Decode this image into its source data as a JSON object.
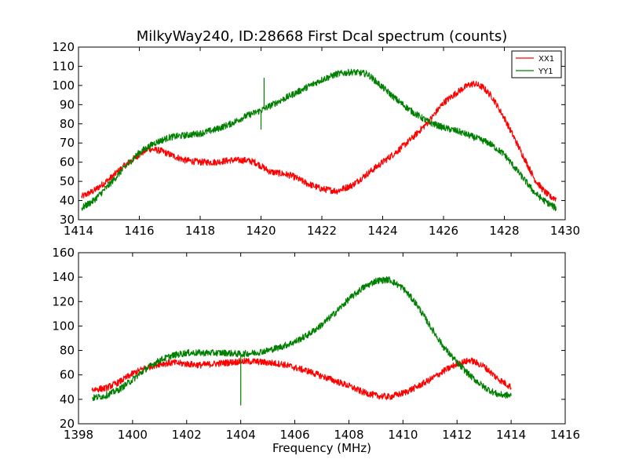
{
  "figure": {
    "title": "MilkyWay240, ID:28668 First Dcal spectrum (counts)"
  },
  "chart_data": [
    {
      "type": "line",
      "title": "MilkyWay240, ID:28668 First Dcal spectrum (counts)",
      "xlabel": "",
      "ylabel": "",
      "xlim": [
        1414,
        1430
      ],
      "ylim": [
        30,
        120
      ],
      "xticks": [
        1414,
        1416,
        1418,
        1420,
        1422,
        1424,
        1426,
        1428,
        1430
      ],
      "yticks": [
        30,
        40,
        50,
        60,
        70,
        80,
        90,
        100,
        110,
        120
      ],
      "grid": false,
      "legend": {
        "placement": "top-right",
        "entries": [
          "XX1",
          "YY1"
        ]
      },
      "series": [
        {
          "name": "XX1",
          "color": "#ff0000",
          "x": [
            1414.1,
            1414.5,
            1415,
            1415.5,
            1416,
            1416.3,
            1416.7,
            1417,
            1417.5,
            1418,
            1418.5,
            1419,
            1419.5,
            1419.8,
            1420,
            1420.3,
            1420.7,
            1421,
            1421.5,
            1422,
            1422.5,
            1423,
            1423.5,
            1424,
            1424.5,
            1425,
            1425.5,
            1426,
            1426.5,
            1426.8,
            1427,
            1427.3,
            1427.6,
            1428,
            1428.5,
            1429,
            1429.3,
            1429.5,
            1429.7
          ],
          "y": [
            42,
            45,
            51,
            58,
            64,
            67,
            66,
            64,
            61,
            60,
            60,
            61,
            61,
            60,
            58,
            55,
            54,
            53,
            49,
            46,
            45,
            48,
            54,
            60,
            66,
            73,
            81,
            91,
            97,
            100,
            101,
            99,
            94,
            83,
            67,
            51,
            45,
            42,
            41
          ]
        },
        {
          "name": "YY1",
          "color": "#008000",
          "x": [
            1414.1,
            1414.5,
            1415,
            1415.5,
            1416,
            1416.5,
            1417,
            1417.5,
            1418,
            1418.5,
            1419,
            1419.5,
            1420,
            1420.5,
            1421,
            1421.5,
            1422,
            1422.5,
            1423,
            1423.5,
            1424,
            1424.5,
            1425,
            1425.5,
            1426,
            1426.5,
            1427,
            1427.5,
            1428,
            1428.5,
            1429,
            1429.3,
            1429.5,
            1429.7
          ],
          "y": [
            36,
            40,
            48,
            57,
            65,
            70,
            73,
            74,
            75,
            77,
            80,
            84,
            87,
            91,
            95,
            99,
            103,
            106,
            107,
            106,
            99,
            92,
            86,
            81,
            78,
            76,
            73,
            70,
            64,
            54,
            44,
            40,
            38,
            36
          ],
          "spikes": [
            {
              "x": 1420.1,
              "y": 104
            },
            {
              "x": 1420.0,
              "y": 77
            }
          ]
        }
      ]
    },
    {
      "type": "line",
      "title": "",
      "xlabel": "Frequency (MHz)",
      "ylabel": "",
      "xlim": [
        1398,
        1416
      ],
      "ylim": [
        20,
        160
      ],
      "xticks": [
        1398,
        1400,
        1402,
        1404,
        1406,
        1408,
        1410,
        1412,
        1414,
        1416
      ],
      "yticks": [
        20,
        40,
        60,
        80,
        100,
        120,
        140,
        160
      ],
      "grid": false,
      "series": [
        {
          "name": "XX1",
          "color": "#ff0000",
          "x": [
            1398.5,
            1399,
            1399.5,
            1400,
            1400.5,
            1401,
            1401.5,
            1402,
            1402.5,
            1403,
            1403.5,
            1404,
            1404.5,
            1405,
            1405.5,
            1406,
            1406.5,
            1407,
            1407.5,
            1408,
            1408.5,
            1409,
            1409.5,
            1410,
            1410.5,
            1411,
            1411.5,
            1412,
            1412.5,
            1413,
            1413.5,
            1414
          ],
          "y": [
            48,
            49,
            54,
            61,
            66,
            69,
            70,
            69,
            68,
            69,
            70,
            71,
            71,
            70,
            69,
            66,
            63,
            59,
            55,
            51,
            46,
            43,
            42,
            45,
            50,
            56,
            63,
            69,
            72,
            67,
            57,
            50
          ]
        },
        {
          "name": "YY1",
          "color": "#008000",
          "x": [
            1398.5,
            1399,
            1399.5,
            1400,
            1400.5,
            1401,
            1401.5,
            1402,
            1402.5,
            1403,
            1403.5,
            1404,
            1404.5,
            1405,
            1405.5,
            1406,
            1406.5,
            1407,
            1407.5,
            1408,
            1408.5,
            1409,
            1409.5,
            1410,
            1410.5,
            1411,
            1411.5,
            1412,
            1412.5,
            1413,
            1413.5,
            1414
          ],
          "y": [
            41,
            43,
            48,
            56,
            65,
            72,
            76,
            78,
            78,
            78,
            78,
            77,
            78,
            80,
            83,
            87,
            93,
            101,
            111,
            122,
            131,
            137,
            138,
            131,
            118,
            100,
            83,
            70,
            59,
            50,
            44,
            43
          ],
          "spikes": [
            {
              "x": 1404.0,
              "y": 35
            }
          ]
        }
      ]
    }
  ]
}
